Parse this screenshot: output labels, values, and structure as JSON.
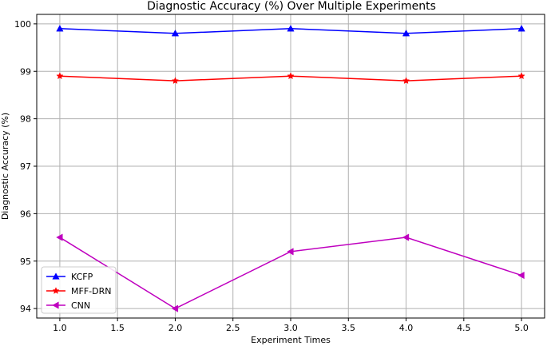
{
  "chart_data": {
    "type": "line",
    "title": "Diagnostic Accuracy (%) Over Multiple Experiments",
    "xlabel": "Experiment Times",
    "ylabel": "Diagnostic Accuracy (%)",
    "xlim": [
      0.8,
      5.2
    ],
    "ylim": [
      93.8,
      100.2
    ],
    "xticks": [
      1.0,
      1.5,
      2.0,
      2.5,
      3.0,
      3.5,
      4.0,
      4.5,
      5.0
    ],
    "xtick_labels": [
      "1.0",
      "1.5",
      "2.0",
      "2.5",
      "3.0",
      "3.5",
      "4.0",
      "4.5",
      "5.0"
    ],
    "yticks": [
      94,
      95,
      96,
      97,
      98,
      99,
      100
    ],
    "ytick_labels": [
      "94",
      "95",
      "96",
      "97",
      "98",
      "99",
      "100"
    ],
    "grid": true,
    "legend_position": "bottom-left",
    "x": [
      1,
      2,
      3,
      4,
      5
    ],
    "series": [
      {
        "name": "KCFP",
        "values": [
          99.9,
          99.8,
          99.9,
          99.8,
          99.9
        ],
        "color": "#0000ff",
        "marker": "triangle-up"
      },
      {
        "name": "MFF-DRN",
        "values": [
          98.9,
          98.8,
          98.9,
          98.8,
          98.9
        ],
        "color": "#ff0000",
        "marker": "star"
      },
      {
        "name": "CNN",
        "values": [
          95.5,
          94.0,
          95.2,
          95.5,
          94.7
        ],
        "color": "#bf00bf",
        "marker": "triangle-left"
      }
    ]
  }
}
